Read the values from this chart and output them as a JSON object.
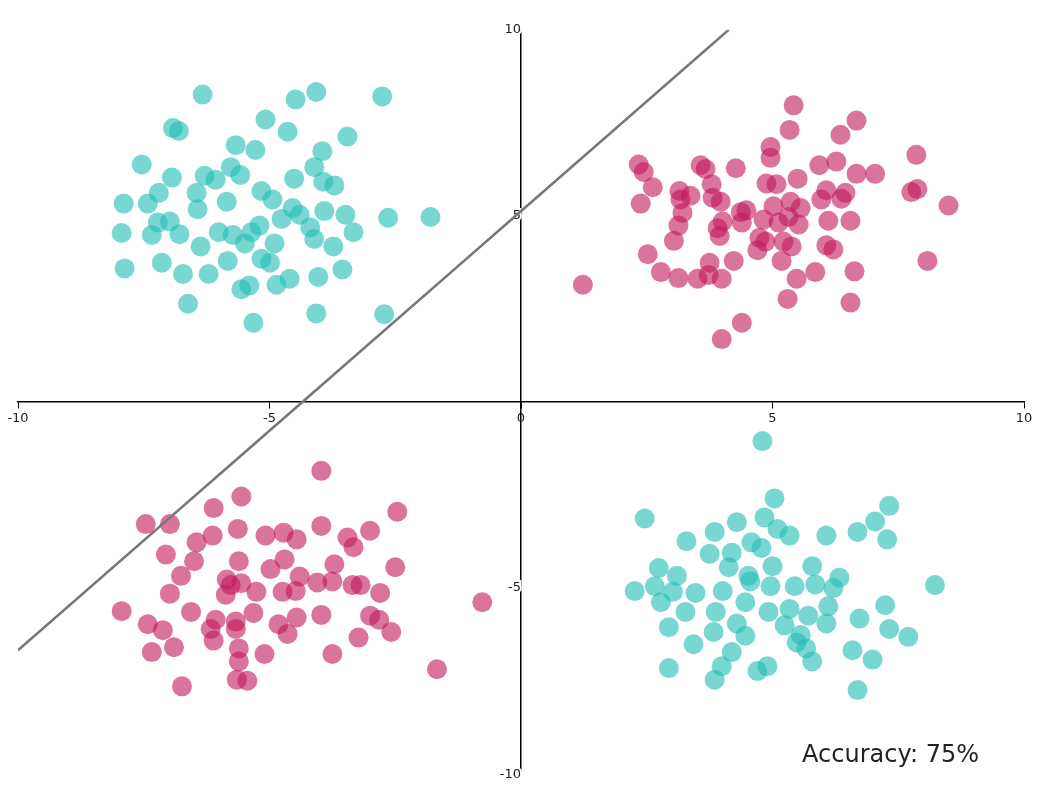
{
  "chart_data": {
    "type": "scatter",
    "xlim": [
      -10,
      10
    ],
    "ylim": [
      -10,
      10
    ],
    "xticks": [
      -10,
      -5,
      0,
      5,
      10
    ],
    "yticks": [
      -10,
      -5,
      5,
      10
    ],
    "marker": "circle",
    "annotations": [
      "Accuracy: 75%"
    ],
    "series": [
      {
        "type": "line",
        "color": "#777777",
        "marker": "none",
        "line_style": "solid",
        "x": [
          -10,
          4.13
        ],
        "values": [
          -6.67,
          10
        ]
      },
      {
        "color": "#1fbdb2",
        "x": [
          -6.33,
          -4.07,
          -4.48,
          -2.76,
          -6.92,
          -6.8,
          -5.08,
          -4.64,
          -3.45,
          -7.54,
          -3.95,
          -5.67,
          -5.28,
          -6.94,
          -6.29,
          -6.07,
          -5.77,
          -5.58,
          -4.11,
          -4.51,
          -3.93,
          -3.71,
          -7.2,
          -6.45,
          -5.85,
          -5.16,
          -4.94,
          -7.9,
          -7.42,
          -6.43,
          -4.54,
          -3.91,
          -3.49,
          -7.22,
          -6.98,
          -6.01,
          -6.79,
          -7.94,
          -7.34,
          -5.73,
          -5.36,
          -5.2,
          -4.76,
          -4.4,
          -4.19,
          -4.11,
          -4.9,
          -6.37,
          -5.49,
          -4.99,
          -5.16,
          -3.73,
          -3.33,
          -7.88,
          -7.14,
          -6.72,
          -6.21,
          -5.83,
          -5.56,
          -5.4,
          -4.86,
          -4.6,
          -4.03,
          -3.55,
          -6.62,
          -5.32,
          -4.07,
          -2.72,
          -2.64,
          -1.8,
          4.8,
          5.04,
          2.46,
          7.32,
          7.04,
          6.69,
          7.28,
          3.29,
          3.85,
          4.29,
          4.84,
          5.1,
          6.07,
          3.75,
          4.19,
          4.58,
          4.78,
          5.34,
          2.74,
          3.1,
          4.13,
          4.52,
          5.0,
          5.79,
          6.33,
          2.26,
          2.66,
          3.02,
          3.47,
          4.01,
          4.56,
          4.96,
          5.44,
          5.85,
          6.21,
          8.23,
          2.78,
          3.27,
          3.87,
          4.46,
          4.92,
          5.34,
          5.71,
          6.11,
          6.73,
          7.24,
          2.94,
          3.83,
          4.29,
          5.24,
          5.56,
          6.07,
          7.32,
          7.7,
          3.43,
          4.19,
          4.46,
          5.48,
          5.67,
          6.59,
          6.99,
          2.94,
          3.99,
          4.7,
          4.9,
          5.79,
          3.85,
          6.69
        ],
        "values": [
          8.26,
          8.33,
          8.13,
          8.21,
          7.36,
          7.28,
          7.59,
          7.26,
          7.13,
          6.38,
          6.74,
          6.9,
          6.77,
          6.03,
          6.08,
          5.97,
          6.31,
          6.1,
          6.31,
          6.0,
          5.92,
          5.82,
          5.62,
          5.62,
          5.38,
          5.67,
          5.44,
          5.33,
          5.33,
          5.18,
          5.21,
          5.13,
          5.03,
          4.82,
          4.85,
          4.56,
          4.51,
          4.54,
          4.49,
          4.49,
          4.56,
          4.74,
          4.92,
          5.03,
          4.69,
          4.38,
          4.26,
          4.18,
          4.26,
          3.74,
          3.85,
          4.18,
          4.56,
          3.59,
          3.74,
          3.44,
          3.44,
          3.79,
          3.03,
          3.13,
          3.15,
          3.31,
          3.36,
          3.56,
          2.64,
          2.13,
          2.38,
          2.36,
          4.95,
          4.97,
          -1.05,
          -2.59,
          -3.13,
          -2.79,
          -3.21,
          -3.49,
          -3.69,
          -3.74,
          -3.49,
          -3.23,
          -3.1,
          -3.41,
          -3.59,
          -4.08,
          -4.05,
          -3.77,
          -3.92,
          -3.59,
          -4.46,
          -4.67,
          -4.44,
          -4.67,
          -4.41,
          -4.41,
          -4.72,
          -5.08,
          -4.95,
          -5.1,
          -5.13,
          -5.08,
          -4.82,
          -4.95,
          -4.95,
          -4.9,
          -5.0,
          -4.92,
          -5.38,
          -5.64,
          -5.64,
          -5.38,
          -5.64,
          -5.56,
          -5.74,
          -5.49,
          -5.82,
          -5.46,
          -6.05,
          -6.18,
          -5.95,
          -6.0,
          -6.26,
          -5.95,
          -6.1,
          -6.31,
          -6.51,
          -6.72,
          -6.28,
          -6.46,
          -6.62,
          -6.67,
          -6.92,
          -7.15,
          -7.1,
          -7.23,
          -7.1,
          -6.97,
          -7.46,
          -7.74
        ]
      },
      {
        "color": "#c2185a",
        "x": [
          5.42,
          5.34,
          6.67,
          6.35,
          7.86,
          4.96,
          4.96,
          2.34,
          2.44,
          3.57,
          3.67,
          4.27,
          5.5,
          5.93,
          6.27,
          6.67,
          7.04,
          2.62,
          3.15,
          3.37,
          3.79,
          4.88,
          5.08,
          6.07,
          6.45,
          7.76,
          7.88,
          2.38,
          3.17,
          3.21,
          3.81,
          3.97,
          4.37,
          4.48,
          5.02,
          5.36,
          5.56,
          5.97,
          6.37,
          8.5,
          3.13,
          3.91,
          4.01,
          4.39,
          4.82,
          5.12,
          5.32,
          5.52,
          6.11,
          6.55,
          3.04,
          3.95,
          4.74,
          4.86,
          5.22,
          5.38,
          6.07,
          6.21,
          2.52,
          4.7,
          4.23,
          5.18,
          3.75,
          5.85,
          6.63,
          8.08,
          2.78,
          3.13,
          3.51,
          3.73,
          3.99,
          5.48,
          1.23,
          6.55,
          5.3,
          4.39,
          3.99,
          -3.97,
          -5.56,
          -2.46,
          -7.46,
          -6.98,
          -6.11,
          -6.13,
          -5.63,
          -5.08,
          -4.72,
          -4.46,
          -3.97,
          -3.45,
          -3.0,
          -7.06,
          -6.45,
          -5.61,
          -3.33,
          -6.5,
          -4.7,
          -3.71,
          -2.5,
          -6.76,
          -5.85,
          -5.77,
          -5.56,
          -4.98,
          -4.4,
          -4.05,
          -3.75,
          -3.35,
          -3.19,
          -6.98,
          -5.87,
          -5.26,
          -4.74,
          -4.48,
          -2.8,
          -0.77,
          -7.94,
          -6.56,
          -6.07,
          -5.67,
          -5.32,
          -4.82,
          -4.46,
          -3.97,
          -3.0,
          -2.82,
          -7.42,
          -7.12,
          -6.17,
          -5.67,
          -4.64,
          -2.58,
          -7.34,
          -6.9,
          -6.11,
          -5.61,
          -3.23,
          -5.61,
          -3.75,
          -1.67,
          -6.74,
          -5.65,
          -5.44,
          -5.1
        ],
        "values": [
          7.97,
          7.31,
          7.56,
          7.18,
          6.64,
          6.85,
          6.56,
          6.38,
          6.18,
          6.36,
          6.26,
          6.28,
          6.0,
          6.36,
          6.46,
          6.13,
          6.13,
          5.77,
          5.67,
          5.54,
          5.85,
          5.87,
          5.85,
          5.69,
          5.62,
          5.64,
          5.72,
          5.33,
          5.44,
          5.08,
          5.49,
          5.38,
          5.1,
          5.15,
          5.26,
          5.38,
          5.21,
          5.44,
          5.46,
          5.28,
          4.74,
          4.67,
          4.85,
          4.82,
          4.9,
          4.82,
          4.97,
          4.77,
          4.87,
          4.87,
          4.33,
          4.46,
          4.41,
          4.31,
          4.31,
          4.18,
          4.21,
          4.1,
          3.97,
          4.08,
          3.79,
          3.79,
          3.74,
          3.49,
          3.51,
          3.79,
          3.49,
          3.33,
          3.31,
          3.41,
          3.31,
          3.31,
          3.15,
          2.67,
          2.77,
          2.13,
          1.69,
          -1.85,
          -2.54,
          -2.95,
          -3.28,
          -3.28,
          -2.85,
          -3.59,
          -3.41,
          -3.59,
          -3.51,
          -3.69,
          -3.33,
          -3.64,
          -3.46,
          -4.1,
          -3.77,
          -4.28,
          -3.9,
          -4.28,
          -4.23,
          -4.36,
          -4.44,
          -4.67,
          -4.77,
          -4.92,
          -4.87,
          -4.49,
          -4.69,
          -4.85,
          -4.82,
          -4.92,
          -4.92,
          -5.15,
          -5.18,
          -5.1,
          -5.1,
          -5.08,
          -5.13,
          -5.38,
          -5.62,
          -5.64,
          -5.85,
          -5.9,
          -5.67,
          -5.97,
          -5.79,
          -5.72,
          -5.74,
          -5.85,
          -5.97,
          -6.13,
          -6.1,
          -6.1,
          -6.23,
          -6.18,
          -6.72,
          -6.59,
          -6.41,
          -6.62,
          -6.33,
          -6.97,
          -6.77,
          -7.18,
          -7.64,
          -7.46,
          -7.49,
          -6.77
        ]
      }
    ]
  }
}
